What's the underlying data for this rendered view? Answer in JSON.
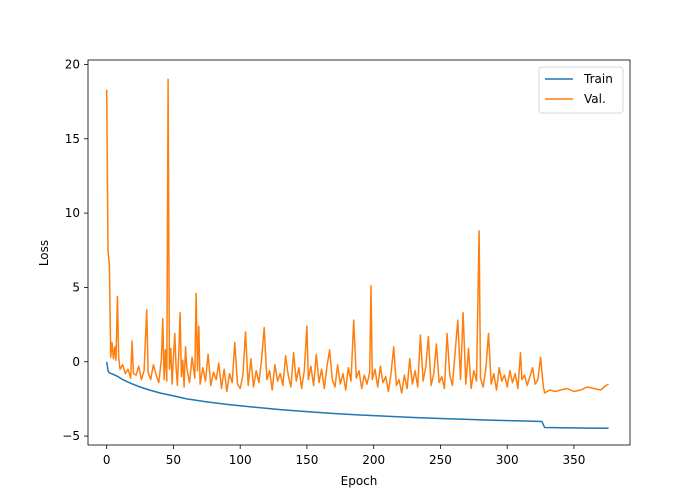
{
  "chart_data": {
    "type": "line",
    "xlabel": "Epoch",
    "ylabel": "Loss",
    "xlim": [
      -14,
      392
    ],
    "ylim": [
      -5.6,
      20.3
    ],
    "xticks": [
      0,
      50,
      100,
      150,
      200,
      250,
      300,
      350
    ],
    "yticks": [
      -5,
      0,
      5,
      10,
      15,
      20
    ],
    "grid": false,
    "legend_position": "top-right",
    "series": [
      {
        "name": "Train",
        "color": "#1f77b4",
        "points": [
          [
            0,
            0
          ],
          [
            1,
            -0.6
          ],
          [
            2,
            -0.75
          ],
          [
            5,
            -0.85
          ],
          [
            8,
            -0.98
          ],
          [
            12,
            -1.2
          ],
          [
            18,
            -1.45
          ],
          [
            25,
            -1.7
          ],
          [
            32,
            -1.9
          ],
          [
            40,
            -2.1
          ],
          [
            50,
            -2.3
          ],
          [
            60,
            -2.5
          ],
          [
            75,
            -2.7
          ],
          [
            90,
            -2.87
          ],
          [
            110,
            -3.05
          ],
          [
            130,
            -3.22
          ],
          [
            150,
            -3.35
          ],
          [
            170,
            -3.48
          ],
          [
            190,
            -3.58
          ],
          [
            210,
            -3.67
          ],
          [
            230,
            -3.75
          ],
          [
            250,
            -3.82
          ],
          [
            270,
            -3.88
          ],
          [
            290,
            -3.93
          ],
          [
            310,
            -3.98
          ],
          [
            326,
            -4.02
          ],
          [
            328,
            -4.42
          ],
          [
            340,
            -4.44
          ],
          [
            360,
            -4.46
          ],
          [
            376,
            -4.47
          ]
        ]
      },
      {
        "name": "Val.",
        "color": "#ff7f0e",
        "points": [
          [
            0,
            18.3
          ],
          [
            1,
            7.5
          ],
          [
            2,
            6.5
          ],
          [
            3,
            0.3
          ],
          [
            4,
            1.3
          ],
          [
            5,
            0.2
          ],
          [
            6,
            1.0
          ],
          [
            7,
            0.1
          ],
          [
            8,
            4.4
          ],
          [
            9,
            0.3
          ],
          [
            10,
            -0.5
          ],
          [
            12,
            -0.2
          ],
          [
            14,
            -0.8
          ],
          [
            16,
            -0.5
          ],
          [
            18,
            -1.1
          ],
          [
            19,
            1.4
          ],
          [
            20,
            -0.8
          ],
          [
            22,
            -0.9
          ],
          [
            24,
            -0.3
          ],
          [
            26,
            -1.2
          ],
          [
            28,
            -0.6
          ],
          [
            30,
            3.5
          ],
          [
            31,
            -0.7
          ],
          [
            33,
            -1.2
          ],
          [
            35,
            -0.2
          ],
          [
            37,
            -0.9
          ],
          [
            39,
            -1.4
          ],
          [
            41,
            0.2
          ],
          [
            42,
            2.9
          ],
          [
            43,
            -1.2
          ],
          [
            44,
            0.8
          ],
          [
            45,
            -1.3
          ],
          [
            46,
            19.0
          ],
          [
            47,
            -0.5
          ],
          [
            48,
            0.9
          ],
          [
            49,
            -1.5
          ],
          [
            50,
            0.3
          ],
          [
            51,
            1.9
          ],
          [
            52,
            -0.4
          ],
          [
            53,
            -1.6
          ],
          [
            54,
            0.6
          ],
          [
            55,
            3.3
          ],
          [
            56,
            -1.0
          ],
          [
            57,
            0.1
          ],
          [
            58,
            -1.7
          ],
          [
            59,
            1.0
          ],
          [
            60,
            -0.4
          ],
          [
            62,
            -1.4
          ],
          [
            64,
            0.3
          ],
          [
            66,
            -1.1
          ],
          [
            67,
            4.6
          ],
          [
            68,
            -0.6
          ],
          [
            69,
            2.4
          ],
          [
            70,
            -1.5
          ],
          [
            72,
            -0.4
          ],
          [
            74,
            -1.3
          ],
          [
            76,
            0.5
          ],
          [
            78,
            -1.6
          ],
          [
            80,
            -0.7
          ],
          [
            82,
            -1.2
          ],
          [
            84,
            -0.1
          ],
          [
            86,
            -1.8
          ],
          [
            88,
            -0.5
          ],
          [
            90,
            -2.0
          ],
          [
            92,
            -0.8
          ],
          [
            94,
            -1.4
          ],
          [
            96,
            1.3
          ],
          [
            98,
            -1.5
          ],
          [
            100,
            -1.8
          ],
          [
            102,
            -0.9
          ],
          [
            104,
            2.0
          ],
          [
            106,
            -1.6
          ],
          [
            108,
            0.2
          ],
          [
            110,
            -1.7
          ],
          [
            112,
            -0.6
          ],
          [
            114,
            -1.4
          ],
          [
            116,
            0.1
          ],
          [
            118,
            2.3
          ],
          [
            120,
            -1.2
          ],
          [
            122,
            -0.6
          ],
          [
            124,
            -1.9
          ],
          [
            126,
            -0.2
          ],
          [
            128,
            -1.3
          ],
          [
            130,
            -0.8
          ],
          [
            132,
            -1.6
          ],
          [
            134,
            0.4
          ],
          [
            136,
            -0.9
          ],
          [
            138,
            -1.7
          ],
          [
            140,
            0.6
          ],
          [
            142,
            -1.3
          ],
          [
            144,
            -0.4
          ],
          [
            146,
            -1.8
          ],
          [
            148,
            -0.6
          ],
          [
            150,
            2.4
          ],
          [
            151,
            -1.2
          ],
          [
            153,
            -0.3
          ],
          [
            155,
            -1.6
          ],
          [
            157,
            0.5
          ],
          [
            159,
            -1.4
          ],
          [
            161,
            -0.5
          ],
          [
            163,
            -1.8
          ],
          [
            165,
            -0.3
          ],
          [
            167,
            0.8
          ],
          [
            169,
            -1.2
          ],
          [
            171,
            -1.7
          ],
          [
            173,
            -0.2
          ],
          [
            175,
            -1.5
          ],
          [
            177,
            -0.8
          ],
          [
            179,
            -1.9
          ],
          [
            181,
            -0.4
          ],
          [
            183,
            -1.3
          ],
          [
            185,
            2.8
          ],
          [
            187,
            -1.1
          ],
          [
            189,
            -0.6
          ],
          [
            191,
            -1.8
          ],
          [
            193,
            -0.9
          ],
          [
            195,
            -1.5
          ],
          [
            197,
            -0.7
          ],
          [
            198,
            5.1
          ],
          [
            199,
            -1.2
          ],
          [
            201,
            -0.5
          ],
          [
            203,
            -1.7
          ],
          [
            205,
            -0.3
          ],
          [
            207,
            -1.4
          ],
          [
            209,
            -1.0
          ],
          [
            211,
            -2.0
          ],
          [
            213,
            -0.8
          ],
          [
            215,
            1.0
          ],
          [
            217,
            -1.6
          ],
          [
            219,
            -1.2
          ],
          [
            221,
            -2.1
          ],
          [
            223,
            -0.9
          ],
          [
            225,
            -1.8
          ],
          [
            227,
            0.2
          ],
          [
            229,
            -1.5
          ],
          [
            231,
            -0.6
          ],
          [
            233,
            -1.7
          ],
          [
            235,
            1.8
          ],
          [
            237,
            -1.3
          ],
          [
            239,
            -0.4
          ],
          [
            241,
            1.7
          ],
          [
            243,
            -1.6
          ],
          [
            245,
            -0.8
          ],
          [
            247,
            1.2
          ],
          [
            249,
            -1.4
          ],
          [
            251,
            -1.0
          ],
          [
            253,
            -1.8
          ],
          [
            255,
            1.9
          ],
          [
            257,
            -0.9
          ],
          [
            259,
            -1.6
          ],
          [
            261,
            0.6
          ],
          [
            263,
            2.8
          ],
          [
            265,
            -1.2
          ],
          [
            267,
            3.3
          ],
          [
            269,
            -1.5
          ],
          [
            271,
            0.9
          ],
          [
            273,
            -1.8
          ],
          [
            275,
            -0.6
          ],
          [
            277,
            -1.3
          ],
          [
            279,
            8.8
          ],
          [
            280,
            -1.1
          ],
          [
            282,
            -1.7
          ],
          [
            284,
            -0.5
          ],
          [
            286,
            1.9
          ],
          [
            288,
            -1.5
          ],
          [
            290,
            -0.8
          ],
          [
            292,
            -1.9
          ],
          [
            294,
            -0.4
          ],
          [
            296,
            -1.3
          ],
          [
            298,
            -0.9
          ],
          [
            300,
            -1.7
          ],
          [
            302,
            -0.6
          ],
          [
            304,
            -1.4
          ],
          [
            306,
            -0.8
          ],
          [
            308,
            -1.8
          ],
          [
            310,
            0.6
          ],
          [
            311,
            -1.2
          ],
          [
            313,
            -0.9
          ],
          [
            315,
            -1.6
          ],
          [
            317,
            -1.0
          ],
          [
            319,
            -0.4
          ],
          [
            321,
            -1.5
          ],
          [
            323,
            -1.2
          ],
          [
            325,
            0.3
          ],
          [
            327,
            -1.6
          ],
          [
            328,
            -2.1
          ],
          [
            332,
            -1.9
          ],
          [
            336,
            -2.0
          ],
          [
            340,
            -1.9
          ],
          [
            345,
            -1.8
          ],
          [
            350,
            -2.0
          ],
          [
            355,
            -1.9
          ],
          [
            360,
            -1.7
          ],
          [
            365,
            -1.8
          ],
          [
            370,
            -1.9
          ],
          [
            374,
            -1.6
          ],
          [
            376,
            -1.5
          ]
        ]
      }
    ]
  }
}
